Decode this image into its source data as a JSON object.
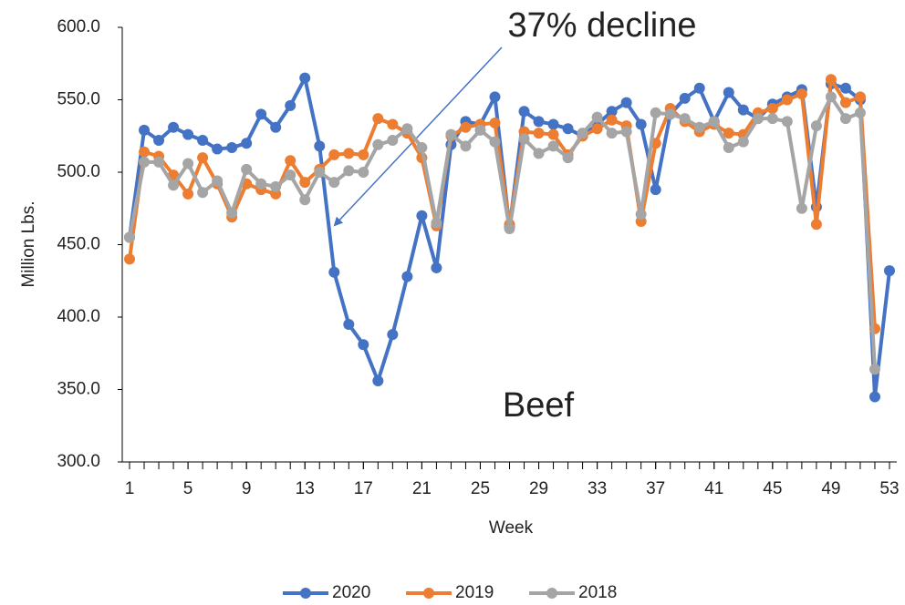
{
  "chart_data": {
    "type": "line",
    "annotations": [
      "37% decline",
      "Beef"
    ],
    "xlabel": "Week",
    "ylabel": "Million Lbs.",
    "x": [
      1,
      2,
      3,
      4,
      5,
      6,
      7,
      8,
      9,
      10,
      11,
      12,
      13,
      14,
      15,
      16,
      17,
      18,
      19,
      20,
      21,
      22,
      23,
      24,
      25,
      26,
      27,
      28,
      29,
      30,
      31,
      32,
      33,
      34,
      35,
      36,
      37,
      38,
      39,
      40,
      41,
      42,
      43,
      44,
      45,
      46,
      47,
      48,
      49,
      50,
      51,
      52,
      53
    ],
    "xlim": [
      0.5,
      53.5
    ],
    "xticks": [
      1,
      5,
      9,
      13,
      17,
      21,
      25,
      29,
      33,
      37,
      41,
      45,
      49,
      53
    ],
    "ylim": [
      300,
      600
    ],
    "yticks": [
      {
        "value": 300,
        "label": "300.0"
      },
      {
        "value": 350,
        "label": "350.0"
      },
      {
        "value": 400,
        "label": "400.0"
      },
      {
        "value": 450,
        "label": "450.0"
      },
      {
        "value": 500,
        "label": "500.0"
      },
      {
        "value": 550,
        "label": "550.0"
      },
      {
        "value": 600,
        "label": "600.0"
      }
    ],
    "grid": false,
    "legend": "bottom",
    "series": [
      {
        "name": "2020",
        "color": "#4472c4",
        "values": [
          455,
          529,
          522,
          531,
          526,
          522,
          516,
          517,
          520,
          540,
          531,
          546,
          565,
          518,
          431,
          395,
          381,
          356,
          388,
          428,
          470,
          434,
          519,
          535,
          533,
          552,
          462,
          542,
          535,
          533,
          530,
          525,
          533,
          542,
          548,
          533,
          488,
          540,
          551,
          558,
          535,
          555,
          543,
          537,
          547,
          552,
          557,
          476,
          561,
          558,
          550,
          345,
          432
        ]
      },
      {
        "name": "2019",
        "color": "#ed7d31",
        "values": [
          440,
          514,
          511,
          498,
          485,
          510,
          492,
          469,
          492,
          488,
          485,
          508,
          493,
          502,
          512,
          513,
          512,
          537,
          533,
          527,
          510,
          463,
          525,
          531,
          533,
          534,
          464,
          528,
          527,
          526,
          512,
          525,
          530,
          536,
          532,
          466,
          520,
          544,
          535,
          528,
          533,
          527,
          526,
          541,
          544,
          550,
          554,
          464,
          564,
          548,
          552,
          392,
          null
        ]
      },
      {
        "name": "2018",
        "color": "#a5a5a5",
        "values": [
          455,
          507,
          507,
          491,
          506,
          486,
          494,
          472,
          502,
          492,
          490,
          498,
          481,
          500,
          493,
          501,
          500,
          519,
          522,
          530,
          517,
          465,
          526,
          518,
          529,
          521,
          461,
          523,
          513,
          518,
          510,
          527,
          538,
          527,
          528,
          471,
          541,
          540,
          537,
          531,
          535,
          517,
          521,
          537,
          537,
          535,
          475,
          532,
          552,
          537,
          541,
          364,
          null
        ]
      }
    ]
  }
}
